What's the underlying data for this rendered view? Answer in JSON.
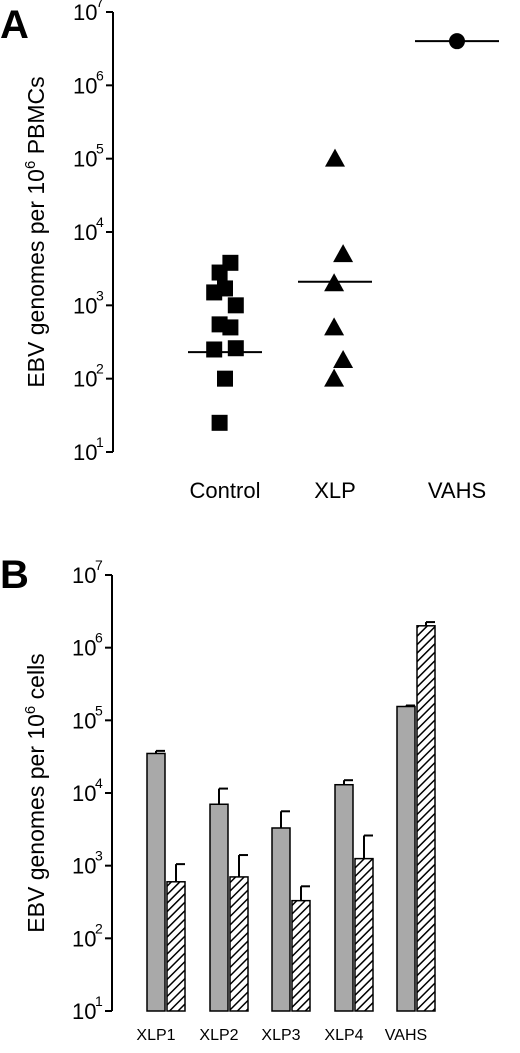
{
  "chart_data": [
    {
      "panel": "A",
      "type": "scatter",
      "ylabel": "EBV genomes per 10",
      "ylabel_sup": "6",
      "ylabel_end": " PBMCs",
      "yscale": "log",
      "ylim": [
        10,
        10000000
      ],
      "yticks": [
        {
          "base": "10",
          "exp": "1",
          "value": 10
        },
        {
          "base": "10",
          "exp": "2",
          "value": 100
        },
        {
          "base": "10",
          "exp": "3",
          "value": 1000
        },
        {
          "base": "10",
          "exp": "4",
          "value": 10000
        },
        {
          "base": "10",
          "exp": "5",
          "value": 100000
        },
        {
          "base": "10",
          "exp": "6",
          "value": 1000000
        },
        {
          "base": "10",
          "exp": "7",
          "value": 10000000
        }
      ],
      "categories": [
        "Control",
        "XLP",
        "VAHS"
      ],
      "groups": [
        {
          "category": "Control",
          "marker": "square",
          "median": 230,
          "points": [
            {
              "offset": -0.3,
              "y": 2800
            },
            {
              "offset": 0.3,
              "y": 3800
            },
            {
              "offset": -0.6,
              "y": 1500
            },
            {
              "offset": 0.0,
              "y": 1700
            },
            {
              "offset": 0.6,
              "y": 1000
            },
            {
              "offset": -0.3,
              "y": 550
            },
            {
              "offset": 0.3,
              "y": 500
            },
            {
              "offset": -0.6,
              "y": 250
            },
            {
              "offset": 0.6,
              "y": 260
            },
            {
              "offset": 0.0,
              "y": 100
            },
            {
              "offset": -0.3,
              "y": 25
            }
          ]
        },
        {
          "category": "XLP",
          "marker": "triangle",
          "median": 2100,
          "points": [
            {
              "offset": 0.0,
              "y": 100000
            },
            {
              "offset": 0.45,
              "y": 5000
            },
            {
              "offset": -0.05,
              "y": 2000
            },
            {
              "offset": -0.05,
              "y": 500
            },
            {
              "offset": 0.45,
              "y": 180
            },
            {
              "offset": -0.05,
              "y": 100
            }
          ]
        },
        {
          "category": "VAHS",
          "marker": "circle",
          "median": 4000000,
          "points": [
            {
              "offset": 0.0,
              "y": 4000000
            }
          ]
        }
      ]
    },
    {
      "panel": "B",
      "type": "bar",
      "ylabel": "EBV genomes per 10",
      "ylabel_sup": "6",
      "ylabel_end": " cells",
      "yscale": "log",
      "ylim": [
        10,
        10000000
      ],
      "yticks": [
        {
          "base": "10",
          "exp": "1",
          "value": 10
        },
        {
          "base": "10",
          "exp": "2",
          "value": 100
        },
        {
          "base": "10",
          "exp": "3",
          "value": 1000
        },
        {
          "base": "10",
          "exp": "4",
          "value": 10000
        },
        {
          "base": "10",
          "exp": "5",
          "value": 100000
        },
        {
          "base": "10",
          "exp": "6",
          "value": 1000000
        },
        {
          "base": "10",
          "exp": "7",
          "value": 10000000
        }
      ],
      "categories": [
        "XLP1",
        "XLP2",
        "XLP3",
        "XLP4",
        "VAHS"
      ],
      "series": [
        {
          "style": "solid-gray",
          "values": [
            35000,
            7000,
            3300,
            13000,
            155000
          ],
          "errors": [
            38000,
            11500,
            5600,
            15000,
            160000
          ]
        },
        {
          "style": "hatched",
          "values": [
            600,
            700,
            330,
            1250,
            2000000
          ],
          "errors": [
            1050,
            1400,
            520,
            2600,
            2250000
          ]
        }
      ]
    }
  ],
  "panels": {
    "a_letter": "A",
    "b_letter": "B"
  },
  "colors": {
    "bar_gray": "#a9a9a9",
    "ink": "#000000",
    "bg": "#ffffff"
  }
}
